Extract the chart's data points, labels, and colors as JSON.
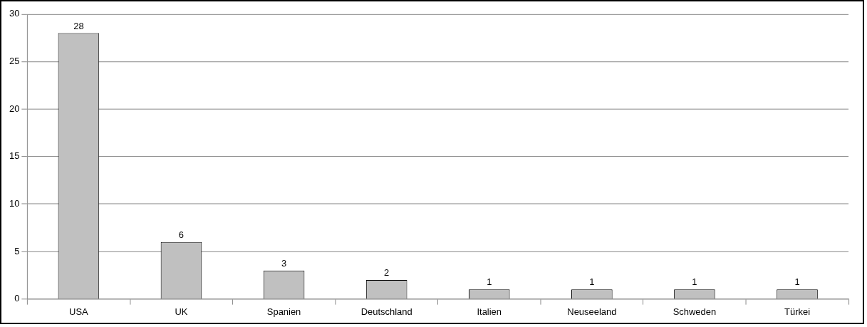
{
  "chart_data": {
    "type": "bar",
    "categories": [
      "USA",
      "UK",
      "Spanien",
      "Deutschland",
      "Italien",
      "Neuseeland",
      "Schweden",
      "Türkei"
    ],
    "values": [
      28,
      6,
      3,
      2,
      1,
      1,
      1,
      1
    ],
    "color": "#c0c0c0",
    "ylim": [
      0,
      30
    ],
    "yticks": [
      0,
      5,
      10,
      15,
      20,
      25,
      30
    ],
    "grid": "y",
    "data_labels": true,
    "legend": false
  }
}
